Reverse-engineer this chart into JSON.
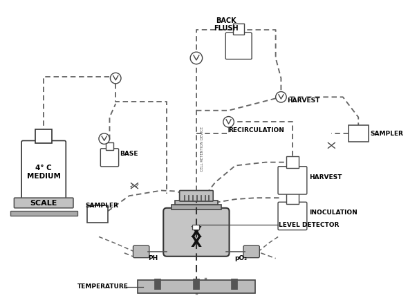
{
  "bg_color": "#ffffff",
  "line_color": "#555555",
  "dark_color": "#222222",
  "gray_color": "#999999",
  "light_gray": "#cccccc",
  "dashed_color": "#666666",
  "labels": {
    "back_flush": "BACK\nFLUSH",
    "harvest_top": "HARVEST",
    "recirculation": "RECIRCULATION",
    "base": "BASE",
    "medium": "4° C\nMEDIUM",
    "scale": "SCALE",
    "sampler_left": "SAMPLER",
    "sampler_right": "SAMPLER",
    "harvest_right": "HARVEST",
    "inoculation": "INOCULATION",
    "level_detector": "LEVEL DETECTOR",
    "ph": "PH",
    "po2": "pO₂",
    "temperature": "TEMPERATURE"
  }
}
